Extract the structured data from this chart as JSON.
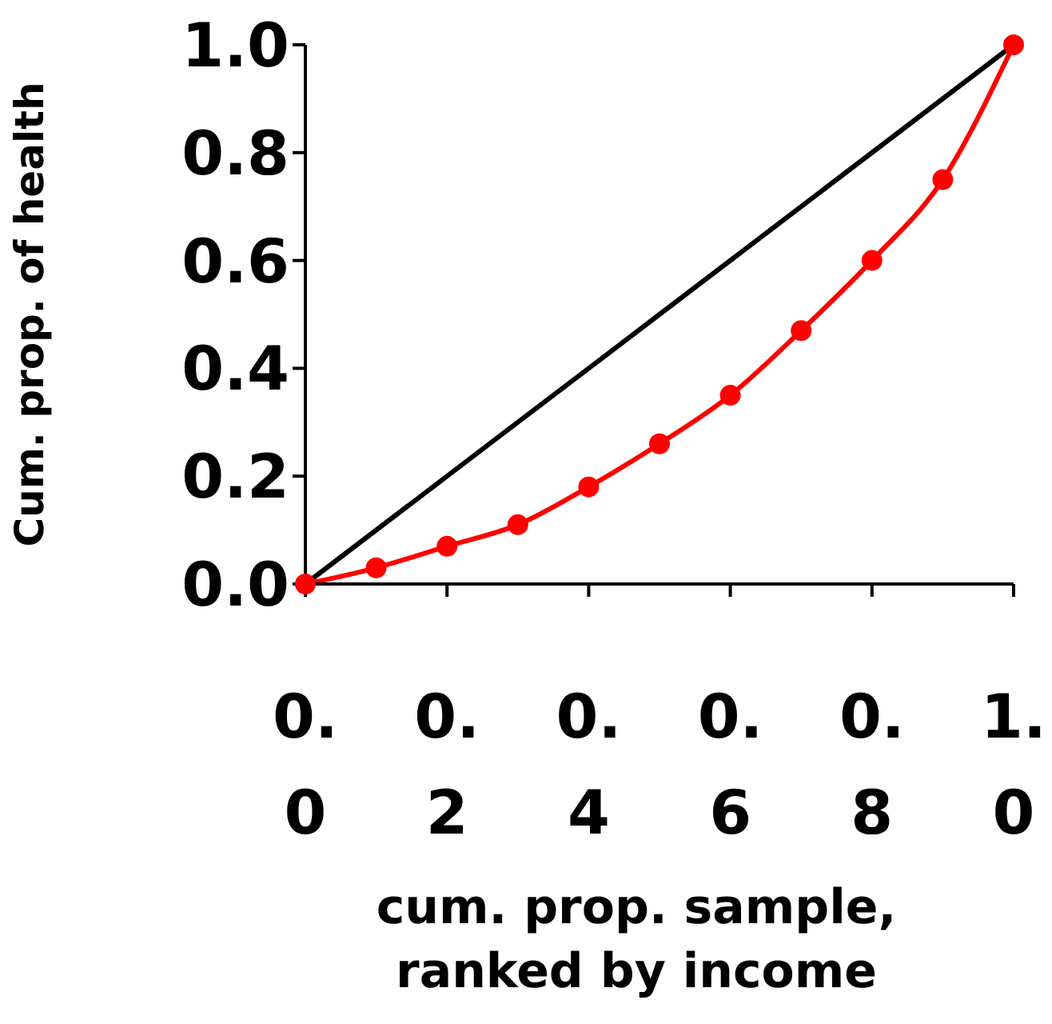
{
  "chart_data": {
    "type": "line",
    "xlabel": "cum. prop. sample, ranked by income",
    "ylabel": "Cum. prop. of health",
    "xlim": [
      0,
      1
    ],
    "ylim": [
      0,
      1
    ],
    "xticks": [
      {
        "value": 0,
        "label": "0.0"
      },
      {
        "value": 0.2,
        "label": "0.2"
      },
      {
        "value": 0.4,
        "label": "0.4"
      },
      {
        "value": 0.6,
        "label": "0.6"
      },
      {
        "value": 0.8,
        "label": "0.8"
      },
      {
        "value": 1,
        "label": "1.0"
      }
    ],
    "yticks": [
      {
        "value": 0,
        "label": "0.0"
      },
      {
        "value": 0.2,
        "label": "0.2"
      },
      {
        "value": 0.4,
        "label": "0.4"
      },
      {
        "value": 0.6,
        "label": "0.6"
      },
      {
        "value": 0.8,
        "label": "0.8"
      },
      {
        "value": 1,
        "label": "1.0"
      }
    ],
    "grid": false,
    "legend": false,
    "series": [
      {
        "color": "#000000",
        "marker": "none",
        "x": [
          0,
          0.5,
          1
        ],
        "values": [
          0,
          0.5,
          1
        ]
      },
      {
        "color": "#ff0000",
        "marker": "circle",
        "x": [
          0,
          0.1,
          0.2,
          0.3,
          0.4,
          0.5,
          0.6,
          0.7,
          0.8,
          0.9,
          1
        ],
        "values": [
          0,
          0.03,
          0.07,
          0.11,
          0.18,
          0.26,
          0.35,
          0.47,
          0.6,
          0.75,
          1
        ]
      }
    ]
  }
}
